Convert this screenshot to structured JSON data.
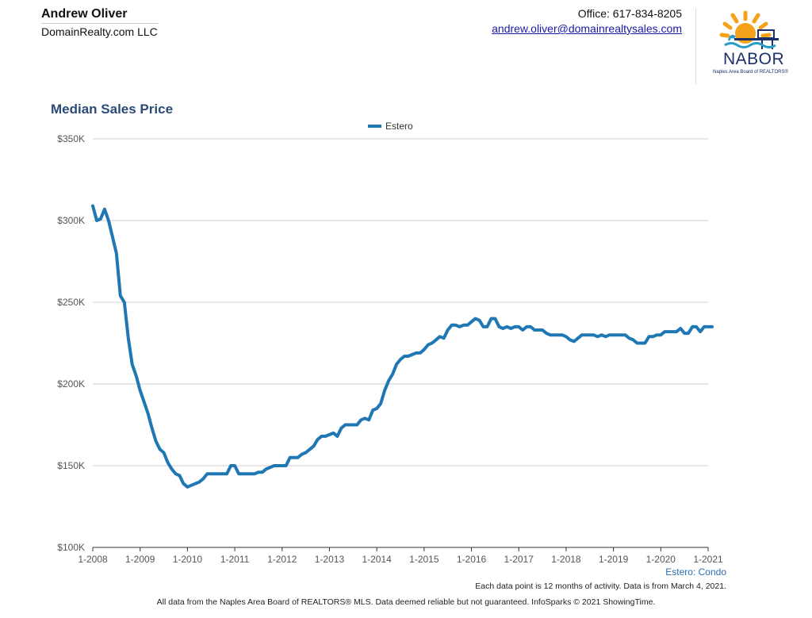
{
  "agent": {
    "name": "Andrew Oliver",
    "company": "DomainRealty.com LLC",
    "office": "Office: 617-834-8205",
    "email": "andrew.oliver@domainrealtysales.com"
  },
  "logo": {
    "name": "NABOR",
    "subtitle": "Naples Area Board of REALTORS®",
    "colors": {
      "sun": "#f5a21b",
      "navy": "#1b2f6b",
      "teal": "#2b9bc9"
    }
  },
  "chart_data": {
    "type": "line",
    "title": "Median Sales Price",
    "xlabel": "",
    "ylabel": "",
    "ylim": [
      100000,
      350000
    ],
    "y_ticks": [
      100000,
      150000,
      200000,
      250000,
      300000,
      350000
    ],
    "y_tick_labels": [
      "$100K",
      "$150K",
      "$200K",
      "$250K",
      "$300K",
      "$350K"
    ],
    "x_range": [
      "2008-01",
      "2021-01"
    ],
    "x_tick_labels": [
      "1-2008",
      "1-2009",
      "1-2010",
      "1-2011",
      "1-2012",
      "1-2013",
      "1-2014",
      "1-2015",
      "1-2016",
      "1-2017",
      "1-2018",
      "1-2019",
      "1-2020",
      "1-2021"
    ],
    "grid": "horizontal",
    "legend": "top-center",
    "series": [
      {
        "name": "Estero",
        "color": "#1f77b4",
        "points": [
          [
            "2008-01",
            309000
          ],
          [
            "2008-02",
            300000
          ],
          [
            "2008-03",
            301000
          ],
          [
            "2008-04",
            307000
          ],
          [
            "2008-05",
            300000
          ],
          [
            "2008-06",
            290000
          ],
          [
            "2008-07",
            280000
          ],
          [
            "2008-08",
            254000
          ],
          [
            "2008-09",
            250000
          ],
          [
            "2008-10",
            228000
          ],
          [
            "2008-11",
            212000
          ],
          [
            "2008-12",
            205000
          ],
          [
            "2009-01",
            196000
          ],
          [
            "2009-02",
            189000
          ],
          [
            "2009-03",
            182000
          ],
          [
            "2009-04",
            173000
          ],
          [
            "2009-05",
            165000
          ],
          [
            "2009-06",
            160000
          ],
          [
            "2009-07",
            158000
          ],
          [
            "2009-08",
            152000
          ],
          [
            "2009-09",
            148000
          ],
          [
            "2009-10",
            145000
          ],
          [
            "2009-11",
            144000
          ],
          [
            "2009-12",
            139000
          ],
          [
            "2010-01",
            137000
          ],
          [
            "2010-02",
            138000
          ],
          [
            "2010-03",
            139000
          ],
          [
            "2010-04",
            140000
          ],
          [
            "2010-05",
            142000
          ],
          [
            "2010-06",
            145000
          ],
          [
            "2010-07",
            145000
          ],
          [
            "2010-08",
            145000
          ],
          [
            "2010-09",
            145000
          ],
          [
            "2010-10",
            145000
          ],
          [
            "2010-11",
            145000
          ],
          [
            "2010-12",
            150000
          ],
          [
            "2011-01",
            150000
          ],
          [
            "2011-02",
            145000
          ],
          [
            "2011-03",
            145000
          ],
          [
            "2011-04",
            145000
          ],
          [
            "2011-05",
            145000
          ],
          [
            "2011-06",
            145000
          ],
          [
            "2011-07",
            146000
          ],
          [
            "2011-08",
            146000
          ],
          [
            "2011-09",
            148000
          ],
          [
            "2011-10",
            149000
          ],
          [
            "2011-11",
            150000
          ],
          [
            "2011-12",
            150000
          ],
          [
            "2012-01",
            150000
          ],
          [
            "2012-02",
            150000
          ],
          [
            "2012-03",
            155000
          ],
          [
            "2012-04",
            155000
          ],
          [
            "2012-05",
            155000
          ],
          [
            "2012-06",
            157000
          ],
          [
            "2012-07",
            158000
          ],
          [
            "2012-08",
            160000
          ],
          [
            "2012-09",
            162000
          ],
          [
            "2012-10",
            166000
          ],
          [
            "2012-11",
            168000
          ],
          [
            "2012-12",
            168000
          ],
          [
            "2013-01",
            169000
          ],
          [
            "2013-02",
            170000
          ],
          [
            "2013-03",
            168000
          ],
          [
            "2013-04",
            173000
          ],
          [
            "2013-05",
            175000
          ],
          [
            "2013-06",
            175000
          ],
          [
            "2013-07",
            175000
          ],
          [
            "2013-08",
            175000
          ],
          [
            "2013-09",
            178000
          ],
          [
            "2013-10",
            179000
          ],
          [
            "2013-11",
            178000
          ],
          [
            "2013-12",
            184000
          ],
          [
            "2014-01",
            185000
          ],
          [
            "2014-02",
            188000
          ],
          [
            "2014-03",
            196000
          ],
          [
            "2014-04",
            202000
          ],
          [
            "2014-05",
            206000
          ],
          [
            "2014-06",
            212000
          ],
          [
            "2014-07",
            215000
          ],
          [
            "2014-08",
            217000
          ],
          [
            "2014-09",
            217000
          ],
          [
            "2014-10",
            218000
          ],
          [
            "2014-11",
            219000
          ],
          [
            "2014-12",
            219000
          ],
          [
            "2015-01",
            221000
          ],
          [
            "2015-02",
            224000
          ],
          [
            "2015-03",
            225000
          ],
          [
            "2015-04",
            227000
          ],
          [
            "2015-05",
            229000
          ],
          [
            "2015-06",
            228000
          ],
          [
            "2015-07",
            233000
          ],
          [
            "2015-08",
            236000
          ],
          [
            "2015-09",
            236000
          ],
          [
            "2015-10",
            235000
          ],
          [
            "2015-11",
            236000
          ],
          [
            "2015-12",
            236000
          ],
          [
            "2016-01",
            238000
          ],
          [
            "2016-02",
            240000
          ],
          [
            "2016-03",
            239000
          ],
          [
            "2016-04",
            235000
          ],
          [
            "2016-05",
            235000
          ],
          [
            "2016-06",
            240000
          ],
          [
            "2016-07",
            240000
          ],
          [
            "2016-08",
            235000
          ],
          [
            "2016-09",
            234000
          ],
          [
            "2016-10",
            235000
          ],
          [
            "2016-11",
            234000
          ],
          [
            "2016-12",
            235000
          ],
          [
            "2017-01",
            235000
          ],
          [
            "2017-02",
            233000
          ],
          [
            "2017-03",
            235000
          ],
          [
            "2017-04",
            235000
          ],
          [
            "2017-05",
            233000
          ],
          [
            "2017-06",
            233000
          ],
          [
            "2017-07",
            233000
          ],
          [
            "2017-08",
            231000
          ],
          [
            "2017-09",
            230000
          ],
          [
            "2017-10",
            230000
          ],
          [
            "2017-11",
            230000
          ],
          [
            "2017-12",
            230000
          ],
          [
            "2018-01",
            229000
          ],
          [
            "2018-02",
            227000
          ],
          [
            "2018-03",
            226000
          ],
          [
            "2018-04",
            228000
          ],
          [
            "2018-05",
            230000
          ],
          [
            "2018-06",
            230000
          ],
          [
            "2018-07",
            230000
          ],
          [
            "2018-08",
            230000
          ],
          [
            "2018-09",
            229000
          ],
          [
            "2018-10",
            230000
          ],
          [
            "2018-11",
            229000
          ],
          [
            "2018-12",
            230000
          ],
          [
            "2019-01",
            230000
          ],
          [
            "2019-02",
            230000
          ],
          [
            "2019-03",
            230000
          ],
          [
            "2019-04",
            230000
          ],
          [
            "2019-05",
            228000
          ],
          [
            "2019-06",
            227000
          ],
          [
            "2019-07",
            225000
          ],
          [
            "2019-08",
            225000
          ],
          [
            "2019-09",
            225000
          ],
          [
            "2019-10",
            229000
          ],
          [
            "2019-11",
            229000
          ],
          [
            "2019-12",
            230000
          ],
          [
            "2020-01",
            230000
          ],
          [
            "2020-02",
            232000
          ],
          [
            "2020-03",
            232000
          ],
          [
            "2020-04",
            232000
          ],
          [
            "2020-05",
            232000
          ],
          [
            "2020-06",
            234000
          ],
          [
            "2020-07",
            231000
          ],
          [
            "2020-08",
            231000
          ],
          [
            "2020-09",
            235000
          ],
          [
            "2020-10",
            235000
          ],
          [
            "2020-11",
            232000
          ],
          [
            "2020-12",
            235000
          ],
          [
            "2021-01",
            235000
          ],
          [
            "2021-02",
            235000
          ]
        ]
      }
    ]
  },
  "captions": {
    "series_note": "Estero: Condo",
    "data_note": "Each data point is 12 months of activity. Data is from March 4, 2021.",
    "footer": "All data from the Naples Area Board of REALTORS® MLS. Data deemed reliable but not guaranteed. InfoSparks © 2021 ShowingTime."
  }
}
